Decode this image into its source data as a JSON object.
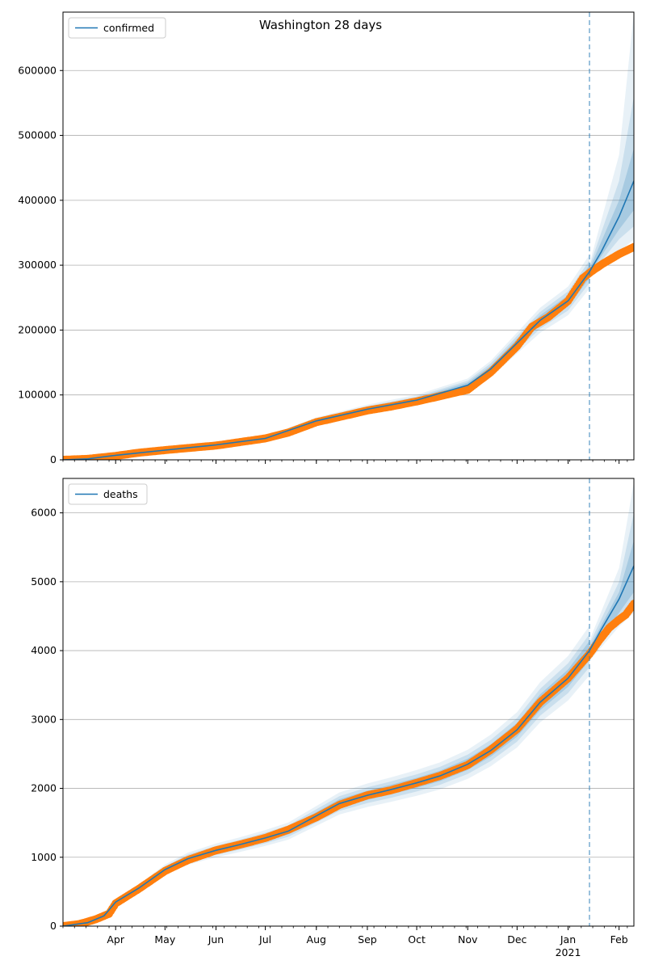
{
  "figure": {
    "title": "Washington 28 days"
  },
  "chart_data": [
    {
      "type": "line",
      "legend_placement": "top-left",
      "grid": "horizontal",
      "x_range": [
        "2020-02-29",
        "2021-02-10"
      ],
      "ylim": [
        0,
        690000
      ],
      "yticks": [
        0,
        100000,
        200000,
        300000,
        400000,
        500000,
        600000
      ],
      "yticklabels": [
        "0",
        "100000",
        "200000",
        "300000",
        "400000",
        "500000",
        "600000"
      ],
      "forecast_start": "2021-01-14",
      "series": [
        {
          "name": "confirmed",
          "role": "model",
          "color": "#1f77b4",
          "points": [
            [
              "2020-02-29",
              0
            ],
            [
              "2020-03-15",
              1500
            ],
            [
              "2020-04-01",
              7000
            ],
            [
              "2020-05-01",
              15000
            ],
            [
              "2020-06-01",
              23000
            ],
            [
              "2020-07-01",
              33000
            ],
            [
              "2020-08-01",
              60000
            ],
            [
              "2020-09-01",
              78000
            ],
            [
              "2020-10-01",
              92000
            ],
            [
              "2020-11-01",
              115000
            ],
            [
              "2020-11-15",
              140000
            ],
            [
              "2020-12-01",
              180000
            ],
            [
              "2020-12-15",
              215000
            ],
            [
              "2021-01-01",
              245000
            ],
            [
              "2021-01-14",
              290000
            ],
            [
              "2021-01-21",
              320000
            ],
            [
              "2021-02-01",
              375000
            ],
            [
              "2021-02-10",
              430000
            ]
          ]
        },
        {
          "role": "observed",
          "color": "#ff7f0e",
          "points": [
            [
              "2020-02-29",
              0
            ],
            [
              "2020-03-15",
              1500
            ],
            [
              "2020-04-01",
              6000
            ],
            [
              "2020-04-15",
              11000
            ],
            [
              "2020-05-01",
              15000
            ],
            [
              "2020-06-01",
              22000
            ],
            [
              "2020-07-01",
              33000
            ],
            [
              "2020-07-15",
              42000
            ],
            [
              "2020-08-01",
              58000
            ],
            [
              "2020-08-15",
              66000
            ],
            [
              "2020-09-01",
              76000
            ],
            [
              "2020-09-15",
              82000
            ],
            [
              "2020-10-01",
              90000
            ],
            [
              "2020-10-15",
              98000
            ],
            [
              "2020-11-01",
              108000
            ],
            [
              "2020-11-15",
              135000
            ],
            [
              "2020-12-01",
              175000
            ],
            [
              "2020-12-10",
              205000
            ],
            [
              "2020-12-20",
              220000
            ],
            [
              "2021-01-01",
              245000
            ],
            [
              "2021-01-10",
              280000
            ],
            [
              "2021-01-15",
              290000
            ],
            [
              "2021-01-22",
              302000
            ],
            [
              "2021-02-01",
              317000
            ],
            [
              "2021-02-10",
              328000
            ]
          ]
        }
      ],
      "bands": [
        {
          "upper": [
            [
              "2021-01-14",
              302000
            ],
            [
              "2021-02-01",
              470000
            ],
            [
              "2021-02-10",
              690000
            ]
          ],
          "lower": [
            [
              "2021-01-14",
              280000
            ],
            [
              "2021-02-01",
              320000
            ],
            [
              "2021-02-10",
              340000
            ]
          ]
        },
        {
          "upper": [
            [
              "2021-01-14",
              298000
            ],
            [
              "2021-02-01",
              430000
            ],
            [
              "2021-02-10",
              560000
            ]
          ],
          "lower": [
            [
              "2021-01-14",
              284000
            ],
            [
              "2021-02-01",
              340000
            ],
            [
              "2021-02-10",
              360000
            ]
          ]
        },
        {
          "upper": [
            [
              "2021-01-14",
              294000
            ],
            [
              "2021-02-01",
              400000
            ],
            [
              "2021-02-10",
              480000
            ]
          ],
          "lower": [
            [
              "2021-01-14",
              287000
            ],
            [
              "2021-02-01",
              355000
            ],
            [
              "2021-02-10",
              385000
            ]
          ]
        }
      ]
    },
    {
      "type": "line",
      "legend_placement": "top-left",
      "grid": "horizontal",
      "x_range": [
        "2020-02-29",
        "2021-02-10"
      ],
      "ylim": [
        0,
        6500
      ],
      "yticks": [
        0,
        1000,
        2000,
        3000,
        4000,
        5000,
        6000
      ],
      "yticklabels": [
        "0",
        "1000",
        "2000",
        "3000",
        "4000",
        "5000",
        "6000"
      ],
      "xticklabels": [
        "Apr",
        "May",
        "Jun",
        "Jul",
        "Aug",
        "Sep",
        "Oct",
        "Nov",
        "Dec",
        "Jan",
        "Feb"
      ],
      "xticks": [
        "2020-04-01",
        "2020-05-01",
        "2020-06-01",
        "2020-07-01",
        "2020-08-01",
        "2020-09-01",
        "2020-10-01",
        "2020-11-01",
        "2020-12-01",
        "2021-01-01",
        "2021-02-01"
      ],
      "year_label": "2021",
      "forecast_start": "2021-01-14",
      "series": [
        {
          "name": "deaths",
          "role": "model",
          "color": "#1f77b4",
          "points": [
            [
              "2020-02-29",
              0
            ],
            [
              "2020-03-15",
              50
            ],
            [
              "2020-03-25",
              150
            ],
            [
              "2020-04-01",
              350
            ],
            [
              "2020-04-15",
              550
            ],
            [
              "2020-05-01",
              820
            ],
            [
              "2020-05-15",
              980
            ],
            [
              "2020-06-01",
              1100
            ],
            [
              "2020-06-15",
              1180
            ],
            [
              "2020-07-01",
              1280
            ],
            [
              "2020-07-15",
              1380
            ],
            [
              "2020-08-01",
              1600
            ],
            [
              "2020-08-15",
              1780
            ],
            [
              "2020-09-01",
              1900
            ],
            [
              "2020-09-15",
              1980
            ],
            [
              "2020-10-01",
              2080
            ],
            [
              "2020-10-15",
              2180
            ],
            [
              "2020-11-01",
              2350
            ],
            [
              "2020-11-15",
              2550
            ],
            [
              "2020-12-01",
              2850
            ],
            [
              "2020-12-15",
              3250
            ],
            [
              "2021-01-01",
              3600
            ],
            [
              "2021-01-14",
              4000
            ],
            [
              "2021-01-21",
              4300
            ],
            [
              "2021-02-01",
              4750
            ],
            [
              "2021-02-10",
              5230
            ]
          ]
        },
        {
          "role": "observed",
          "color": "#ff7f0e",
          "points": [
            [
              "2020-02-29",
              0
            ],
            [
              "2020-03-10",
              30
            ],
            [
              "2020-03-20",
              100
            ],
            [
              "2020-03-28",
              180
            ],
            [
              "2020-04-01",
              330
            ],
            [
              "2020-04-15",
              540
            ],
            [
              "2020-05-01",
              800
            ],
            [
              "2020-05-15",
              960
            ],
            [
              "2020-06-01",
              1100
            ],
            [
              "2020-06-15",
              1180
            ],
            [
              "2020-07-01",
              1280
            ],
            [
              "2020-07-15",
              1400
            ],
            [
              "2020-08-01",
              1580
            ],
            [
              "2020-08-15",
              1760
            ],
            [
              "2020-09-01",
              1900
            ],
            [
              "2020-09-15",
              1970
            ],
            [
              "2020-10-01",
              2080
            ],
            [
              "2020-10-15",
              2180
            ],
            [
              "2020-11-01",
              2340
            ],
            [
              "2020-11-15",
              2560
            ],
            [
              "2020-12-01",
              2860
            ],
            [
              "2020-12-15",
              3250
            ],
            [
              "2021-01-01",
              3600
            ],
            [
              "2021-01-14",
              3950
            ],
            [
              "2021-01-20",
              4150
            ],
            [
              "2021-01-26",
              4330
            ],
            [
              "2021-02-01",
              4450
            ],
            [
              "2021-02-05",
              4520
            ],
            [
              "2021-02-10",
              4680
            ]
          ]
        }
      ],
      "bands": [
        {
          "upper": [
            [
              "2021-01-14",
              4150
            ],
            [
              "2021-02-01",
              5200
            ],
            [
              "2021-02-10",
              6450
            ]
          ],
          "lower": [
            [
              "2021-01-14",
              3850
            ],
            [
              "2021-02-01",
              4350
            ],
            [
              "2021-02-10",
              4550
            ]
          ]
        },
        {
          "upper": [
            [
              "2021-01-14",
              4100
            ],
            [
              "2021-02-01",
              5000
            ],
            [
              "2021-02-10",
              6000
            ]
          ],
          "lower": [
            [
              "2021-01-14",
              3900
            ],
            [
              "2021-02-01",
              4450
            ],
            [
              "2021-02-10",
              4700
            ]
          ]
        },
        {
          "upper": [
            [
              "2021-01-14",
              4050
            ],
            [
              "2021-02-01",
              4850
            ],
            [
              "2021-02-10",
              5600
            ]
          ],
          "lower": [
            [
              "2021-01-14",
              3950
            ],
            [
              "2021-02-01",
              4550
            ],
            [
              "2021-02-10",
              4850
            ]
          ]
        }
      ]
    }
  ]
}
